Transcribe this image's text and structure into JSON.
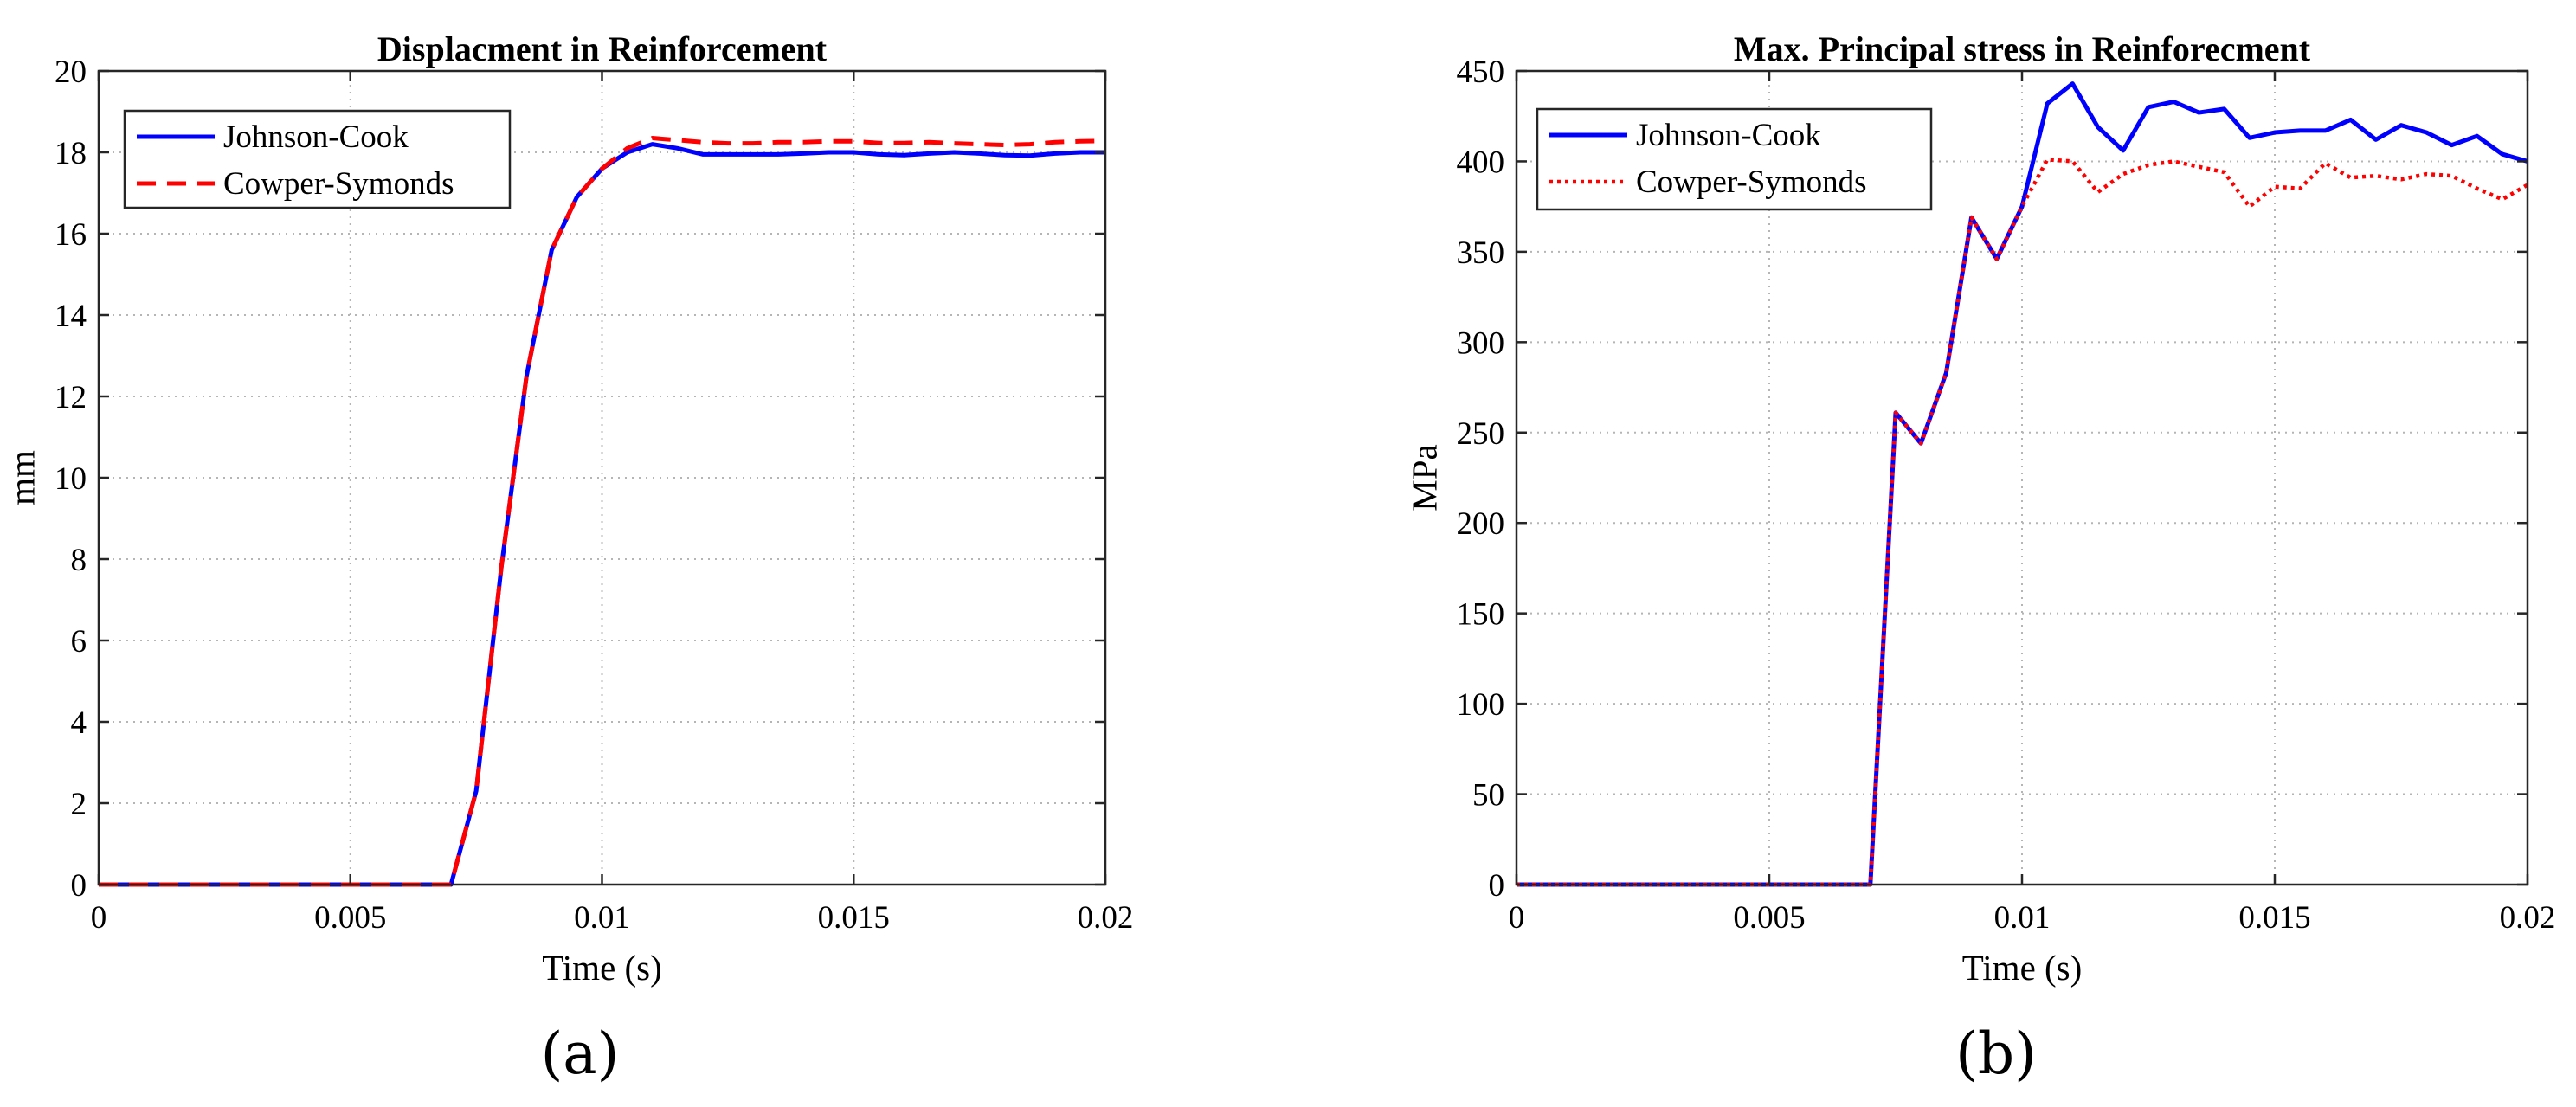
{
  "chart_data": [
    {
      "panel_label": "(a)",
      "type": "line",
      "title": "Displacment in Reinforcement",
      "xlabel": "Time (s)",
      "ylabel": "mm",
      "xlim": [
        0,
        0.02
      ],
      "ylim": [
        0,
        20
      ],
      "xticks": [
        0,
        0.005,
        0.01,
        0.015,
        0.02
      ],
      "xtick_labels": [
        "0",
        "0.005",
        "0.01",
        "0.015",
        "0.02"
      ],
      "yticks": [
        0,
        2,
        4,
        6,
        8,
        10,
        12,
        14,
        16,
        18,
        20
      ],
      "ytick_labels": [
        "0",
        "2",
        "4",
        "6",
        "8",
        "10",
        "12",
        "14",
        "16",
        "18",
        "20"
      ],
      "grid": true,
      "legend_position": "top-left",
      "series": [
        {
          "name": "Johnson-Cook",
          "color": "#0000ff",
          "style": "solid",
          "x": [
            0,
            0.0005,
            0.001,
            0.0015,
            0.002,
            0.0025,
            0.003,
            0.0035,
            0.004,
            0.0045,
            0.005,
            0.0055,
            0.006,
            0.0065,
            0.007,
            0.0075,
            0.008,
            0.0085,
            0.009,
            0.0095,
            0.01,
            0.0105,
            0.011,
            0.0115,
            0.012,
            0.0125,
            0.013,
            0.0135,
            0.014,
            0.0145,
            0.015,
            0.0155,
            0.016,
            0.0165,
            0.017,
            0.0175,
            0.018,
            0.0185,
            0.019,
            0.0195,
            0.02
          ],
          "y": [
            0,
            0,
            0,
            0,
            0,
            0,
            0,
            0,
            0,
            0,
            0,
            0,
            0,
            0,
            0,
            2.3,
            7.8,
            12.5,
            15.6,
            16.9,
            17.6,
            18.0,
            18.2,
            18.1,
            17.95,
            17.95,
            17.95,
            17.95,
            17.97,
            18.0,
            18.0,
            17.95,
            17.93,
            17.97,
            18.0,
            17.97,
            17.93,
            17.92,
            17.97,
            18.0,
            18.0
          ]
        },
        {
          "name": "Cowper-Symonds",
          "color": "#ff0000",
          "style": "dashed",
          "x": [
            0,
            0.0005,
            0.001,
            0.0015,
            0.002,
            0.0025,
            0.003,
            0.0035,
            0.004,
            0.0045,
            0.005,
            0.0055,
            0.006,
            0.0065,
            0.007,
            0.0075,
            0.008,
            0.0085,
            0.009,
            0.0095,
            0.01,
            0.0105,
            0.011,
            0.0115,
            0.012,
            0.0125,
            0.013,
            0.0135,
            0.014,
            0.0145,
            0.015,
            0.0155,
            0.016,
            0.0165,
            0.017,
            0.0175,
            0.018,
            0.0185,
            0.019,
            0.0195,
            0.02
          ],
          "y": [
            0,
            0,
            0,
            0,
            0,
            0,
            0,
            0,
            0,
            0,
            0,
            0,
            0,
            0,
            0,
            2.3,
            7.8,
            12.5,
            15.6,
            16.9,
            17.6,
            18.1,
            18.35,
            18.3,
            18.25,
            18.22,
            18.22,
            18.25,
            18.25,
            18.27,
            18.27,
            18.23,
            18.23,
            18.25,
            18.22,
            18.2,
            18.18,
            18.2,
            18.25,
            18.27,
            18.28
          ]
        }
      ]
    },
    {
      "panel_label": "(b)",
      "type": "line",
      "title": "Max. Principal stress in Reinforecment",
      "xlabel": "Time (s)",
      "ylabel": "MPa",
      "xlim": [
        0,
        0.02
      ],
      "ylim": [
        0,
        450
      ],
      "xticks": [
        0,
        0.005,
        0.01,
        0.015,
        0.02
      ],
      "xtick_labels": [
        "0",
        "0.005",
        "0.01",
        "0.015",
        "0.02"
      ],
      "yticks": [
        0,
        50,
        100,
        150,
        200,
        250,
        300,
        350,
        400,
        450
      ],
      "ytick_labels": [
        "0",
        "50",
        "100",
        "150",
        "200",
        "250",
        "300",
        "350",
        "400",
        "450"
      ],
      "grid": true,
      "legend_position": "top-left",
      "series": [
        {
          "name": "Johnson-Cook",
          "color": "#0000ff",
          "style": "solid",
          "x": [
            0,
            0.0005,
            0.001,
            0.0015,
            0.002,
            0.0025,
            0.003,
            0.0035,
            0.004,
            0.0045,
            0.005,
            0.0055,
            0.006,
            0.0065,
            0.007,
            0.0075,
            0.008,
            0.0085,
            0.009,
            0.0095,
            0.01,
            0.0105,
            0.011,
            0.0115,
            0.012,
            0.0125,
            0.013,
            0.0135,
            0.014,
            0.0145,
            0.015,
            0.0155,
            0.016,
            0.0165,
            0.017,
            0.0175,
            0.018,
            0.0185,
            0.019,
            0.0195,
            0.02
          ],
          "y": [
            0,
            0,
            0,
            0,
            0,
            0,
            0,
            0,
            0,
            0,
            0,
            0,
            0,
            0,
            0,
            261,
            244,
            283,
            369,
            346,
            375,
            432,
            443,
            419,
            406,
            430,
            433,
            427,
            429,
            413,
            416,
            417,
            417,
            423,
            412,
            420,
            416,
            409,
            414,
            404,
            400
          ]
        },
        {
          "name": "Cowper-Symonds",
          "color": "#ff0000",
          "style": "dotted",
          "x": [
            0,
            0.0005,
            0.001,
            0.0015,
            0.002,
            0.0025,
            0.003,
            0.0035,
            0.004,
            0.0045,
            0.005,
            0.0055,
            0.006,
            0.0065,
            0.007,
            0.0075,
            0.008,
            0.0085,
            0.009,
            0.0095,
            0.01,
            0.0105,
            0.011,
            0.0115,
            0.012,
            0.0125,
            0.013,
            0.0135,
            0.014,
            0.0145,
            0.015,
            0.0155,
            0.016,
            0.0165,
            0.017,
            0.0175,
            0.018,
            0.0185,
            0.019,
            0.0195,
            0.02
          ],
          "y": [
            0,
            0,
            0,
            0,
            0,
            0,
            0,
            0,
            0,
            0,
            0,
            0,
            0,
            0,
            0,
            261,
            244,
            283,
            369,
            346,
            375,
            401,
            400,
            383,
            393,
            398,
            400,
            397,
            394,
            375,
            386,
            385,
            399,
            391,
            392,
            390,
            393,
            392,
            385,
            379,
            387
          ]
        }
      ]
    }
  ]
}
